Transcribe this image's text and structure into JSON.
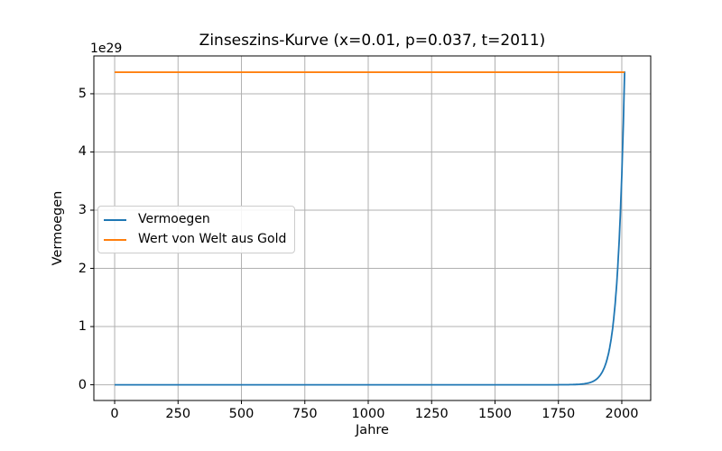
{
  "chart_data": {
    "type": "line",
    "title": "Zinseszins-Kurve (x=0.01, p=0.037, t=2011)",
    "xlabel": "Jahre",
    "ylabel": "Vermoegen",
    "y_offset_text": "1e29",
    "y_unit": "1e29",
    "grid": true,
    "grid_color": "#b0b0b0",
    "spine_color": "#000000",
    "background_color": "#ffffff",
    "xlim": [
      -82,
      2114
    ],
    "ylim_1e29": [
      -0.27,
      5.65
    ],
    "xticks": [
      0,
      250,
      500,
      750,
      1000,
      1250,
      1500,
      1750,
      2000
    ],
    "yticks_1e29": [
      0,
      1,
      2,
      3,
      4,
      5
    ],
    "legend": {
      "position": "center left",
      "entries": [
        "Vermoegen",
        "Wert von Welt aus Gold"
      ]
    },
    "series": [
      {
        "name": "Vermoegen",
        "color": "#1f77b4",
        "model": "compound_interest",
        "initial": 0.01,
        "rate": 0.037,
        "t_start": 0,
        "t_end": 2011,
        "sample_points_1e29": [
          [
            0,
            0
          ],
          [
            500,
            0
          ],
          [
            1000,
            0
          ],
          [
            1500,
            5e-08
          ],
          [
            1750,
            0.00041
          ],
          [
            1800,
            0.0025
          ],
          [
            1850,
            0.0155
          ],
          [
            1900,
            0.0955
          ],
          [
            1950,
            0.586
          ],
          [
            1975,
            1.456
          ],
          [
            2000,
            3.606
          ],
          [
            2011,
            5.382
          ]
        ]
      },
      {
        "name": "Wert von Welt aus Gold",
        "color": "#ff7f0e",
        "model": "constant",
        "value_1e29": 5.37,
        "t_start": 0,
        "t_end": 2011
      }
    ]
  }
}
